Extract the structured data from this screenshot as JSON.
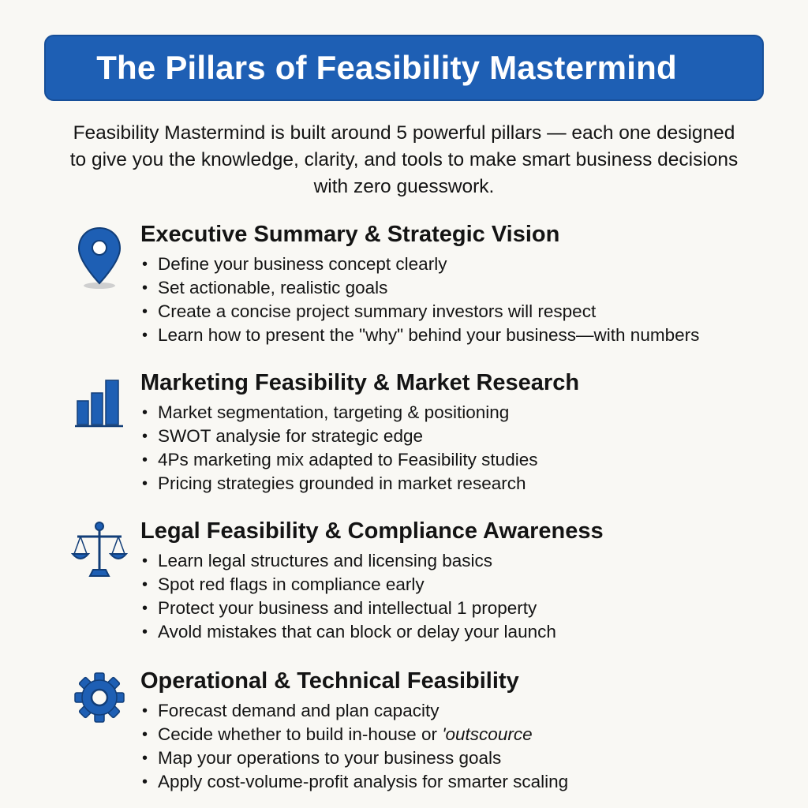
{
  "title": "The Pillars of Feasibility Mastermind",
  "intro": {
    "line1": "Feasibility Mastermind is built around 5 powerful pillars — each one designed",
    "line2": "to give you the knowledge, clarity, and tools to make smart business decisions",
    "line3": "with zero guesswork."
  },
  "pillars": [
    {
      "icon": "map-pin-icon",
      "title": "Executive Summary & Strategic Vision",
      "bullets": [
        "Define your business concept clearly",
        "Set actionable, realistic goals",
        "Create a concise project summary investors will respect",
        "Learn how to present the \"why\" behind your business—with numbers"
      ]
    },
    {
      "icon": "bar-chart-icon",
      "title": "Marketing Feasibility & Market Research",
      "bullets": [
        "Market segmentation, targeting & positioning",
        "SWOT analysie for strategic edge",
        "4Ps marketing mix adapted to Feasibility studies",
        "Pricing strategies grounded in market research"
      ]
    },
    {
      "icon": "scales-icon",
      "title": "Legal Feasibility & Compliance Awareness",
      "bullets": [
        "Learn legal structures and licensing basics",
        "Spot red flags in compliance early",
        "Protect your business and intellectual 1 property",
        "Avold mistakes that can block or delay your launch"
      ]
    },
    {
      "icon": "gear-icon",
      "title": "Operational & Technical Feasibility",
      "bullets": [
        "Forecast demand and plan capacity",
        "Cecide whether to build in-house or",
        "Map your operations to your business goals",
        "Apply cost-volume-profit analysis for smarter scaling"
      ],
      "bullet2_italic": "'outscource"
    }
  ],
  "colors": {
    "brand_blue": "#1e5fb4",
    "background": "#f9f8f4",
    "text": "#141414"
  }
}
